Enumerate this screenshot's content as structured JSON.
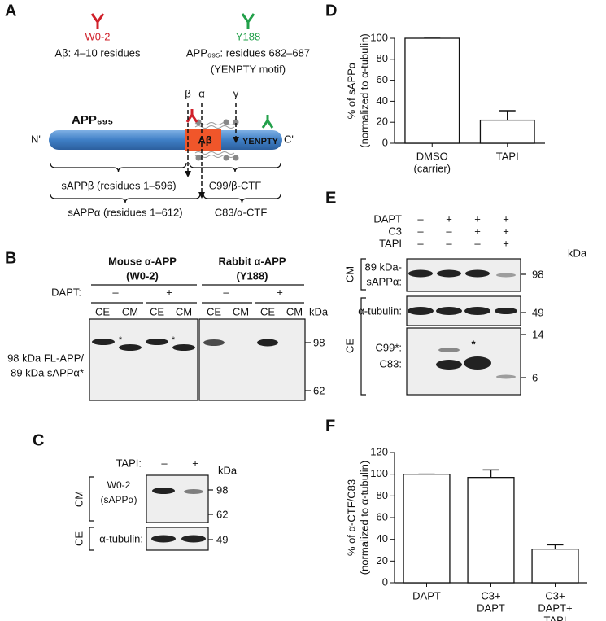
{
  "panel_labels": [
    "A",
    "B",
    "C",
    "D",
    "E",
    "F"
  ],
  "diagram": {
    "antibody_1": {
      "name": "W0-2",
      "epitope": "Aβ: 4–10 residues"
    },
    "antibody_2": {
      "name": "Y188",
      "epitope": "APP₆₉₅: residues 682–687",
      "motif": "(YENPTY motif)"
    },
    "protein": "APP₆₉₅",
    "n_term": "N'",
    "c_term": "C'",
    "abeta": "Aβ",
    "yenpty": "YENPTY",
    "sites": [
      "β",
      "α",
      "γ"
    ],
    "fragments": [
      "sAPPβ (residues 1–596)",
      "C99/β-CTF",
      "sAPPα (residues 1–612)",
      "C83/α-CTF"
    ]
  },
  "blot_b": {
    "antibodies": [
      [
        "Mouse α-APP",
        "(W0-2)"
      ],
      [
        "Rabbit α-APP",
        "(Y188)"
      ]
    ],
    "treatment": "DAPT:",
    "signs": [
      "–",
      "+",
      "–",
      "+"
    ],
    "lanes": [
      "CE",
      "CM",
      "CE",
      "CM",
      "CE",
      "CM",
      "CE",
      "CM"
    ],
    "unit": "kDa",
    "band_label": [
      "98 kDa FL-APP/",
      "89 kDa sAPPα*"
    ],
    "markers": [
      "98",
      "62"
    ],
    "asterisk": "*"
  },
  "blot_c": {
    "treatment": "TAPI:",
    "signs": [
      "–",
      "+"
    ],
    "unit": "kDa",
    "cm": {
      "group": "CM",
      "label": [
        "W0-2",
        "(sAPPα)"
      ],
      "markers": [
        "98",
        "62"
      ]
    },
    "ce": {
      "group": "CE",
      "label": "α-tubulin:",
      "markers": [
        "49"
      ]
    }
  },
  "blot_e": {
    "treatments": [
      {
        "name": "DAPT",
        "signs": [
          "–",
          "+",
          "+",
          "+"
        ]
      },
      {
        "name": "C3",
        "signs": [
          "–",
          "–",
          "+",
          "+"
        ]
      },
      {
        "name": "TAPI",
        "signs": [
          "–",
          "–",
          "–",
          "+"
        ]
      }
    ],
    "unit": "kDa",
    "cm": {
      "group": "CM",
      "label": [
        "89 kDa-",
        "sAPPα:"
      ],
      "markers": [
        "98"
      ]
    },
    "ce": {
      "group": "CE",
      "tubulin": "α-tubulin:",
      "tubulin_marker": "49",
      "ctf_labels": [
        "C99*:",
        "C83:"
      ],
      "ctf_markers": [
        "14",
        "6"
      ],
      "asterisk": "*"
    }
  },
  "chart_data": [
    {
      "type": "bar",
      "ylabel": [
        "% of sAPPα",
        "(normalized to α-tubulin)"
      ],
      "categories": [
        [
          "DMSO",
          "(carrier)"
        ],
        [
          "TAPI"
        ]
      ],
      "values": [
        100,
        22
      ],
      "errors": [
        0,
        9
      ],
      "ylim": [
        0,
        100
      ],
      "yticks": [
        0,
        20,
        40,
        60,
        80,
        100
      ],
      "color": "#ffffff"
    },
    {
      "type": "bar",
      "ylabel": [
        "% of α-CTF/C83",
        "(normalized to α-tubulin)"
      ],
      "categories": [
        [
          "DAPT"
        ],
        [
          "C3+",
          "DAPT"
        ],
        [
          "C3+",
          "DAPT+",
          "TAPI"
        ]
      ],
      "values": [
        100,
        97,
        31
      ],
      "errors": [
        0,
        7,
        4
      ],
      "ylim": [
        0,
        120
      ],
      "yticks": [
        0,
        20,
        40,
        60,
        80,
        100,
        120
      ],
      "color": "#ffffff"
    }
  ]
}
